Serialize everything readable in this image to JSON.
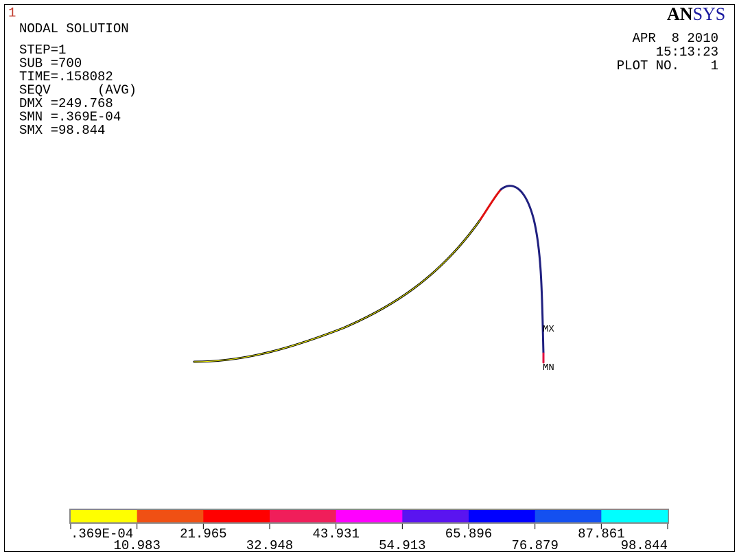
{
  "window_number": "1",
  "logo": {
    "left": "AN",
    "right": "SYS"
  },
  "info": [
    "NODAL SOLUTION",
    "STEP=1",
    "SUB =700",
    "TIME=.158082",
    "SEQV      (AVG)",
    "DMX =249.768",
    "SMN =.369E-04",
    "SMX =98.844"
  ],
  "stamp": [
    "APR  8 2010",
    "15:13:23",
    "PLOT NO.    1"
  ],
  "markers": {
    "max": "MX",
    "min": "MN"
  },
  "legend": {
    "colors": [
      "#ffff00",
      "#f05014",
      "#ff0000",
      "#f01e5a",
      "#ff00ff",
      "#5a14f0",
      "#0000ff",
      "#1450f0",
      "#00ffff"
    ],
    "labels": [
      ".369E-04",
      "10.983",
      "21.965",
      "32.948",
      "43.931",
      "54.913",
      "65.896",
      "76.879",
      "87.861",
      "98.844"
    ]
  }
}
